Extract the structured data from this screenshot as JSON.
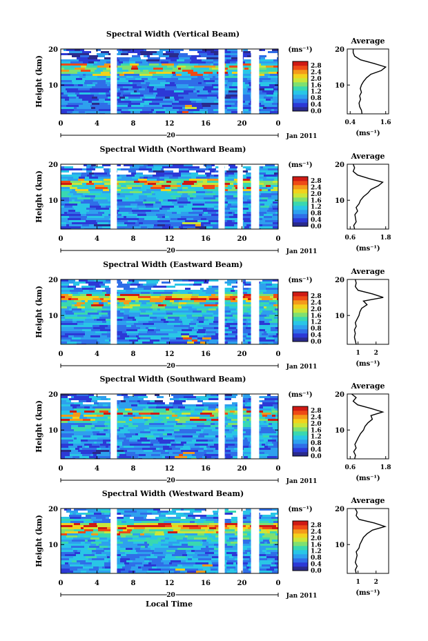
{
  "figure": {
    "x_axis_title": "Local Time",
    "date_label": "Jan 2011",
    "day_label": "20",
    "x_ticks": [
      "0",
      "4",
      "8",
      "12",
      "16",
      "20",
      "0"
    ],
    "y_axis_title": "Height (km)",
    "y_ticks": [
      "20",
      "10"
    ],
    "colorbar_unit": "(ms⁻¹)",
    "colorbar_ticks": [
      "2.8",
      "2.4",
      "2.0",
      "1.6",
      "1.2",
      "0.8",
      "0.4",
      "0.0"
    ],
    "profile_title": "Average",
    "profile_unit": "(ms⁻¹)"
  },
  "colors": {
    "colormap": [
      "#2a2a8c",
      "#2c39d6",
      "#2f6ee8",
      "#2ea0ee",
      "#29c6e6",
      "#39d8b0",
      "#7fe070",
      "#c9e63a",
      "#f2d21c",
      "#f49a1a",
      "#ee4a16",
      "#cf1a14"
    ],
    "gap": "#ffffff",
    "axis": "#000000"
  },
  "chart_data": [
    {
      "type": "heatmap",
      "title": "Spectral Width (Vertical Beam)",
      "xlabel": "Local Time",
      "ylabel": "Height (km)",
      "xlim": [
        0,
        24
      ],
      "ylim": [
        2,
        20
      ],
      "clim": [
        0.0,
        3.0
      ],
      "data_gaps_hours": [
        [
          5.5,
          6.2
        ],
        [
          17.4,
          18.1
        ],
        [
          19.5,
          20.1
        ],
        [
          21.0,
          21.9
        ]
      ],
      "profile": {
        "title": "Average",
        "xlabel": "(ms⁻¹)",
        "xticks": [
          "0.4",
          "1.6"
        ],
        "xlim": [
          0.3,
          1.7
        ],
        "height_km": [
          2,
          3,
          4,
          5,
          6,
          7,
          8,
          9,
          10,
          11,
          12,
          13,
          14,
          15,
          16,
          17,
          18,
          19,
          20
        ],
        "width_ms": [
          0.8,
          0.78,
          0.72,
          0.7,
          0.75,
          0.72,
          0.78,
          0.74,
          0.78,
          0.85,
          0.95,
          1.1,
          1.45,
          1.6,
          1.2,
          0.75,
          0.55,
          0.5,
          0.5
        ]
      }
    },
    {
      "type": "heatmap",
      "title": "Spectral Width (Northward Beam)",
      "xlabel": "Local Time",
      "ylabel": "Height (km)",
      "xlim": [
        0,
        24
      ],
      "ylim": [
        2,
        20
      ],
      "clim": [
        0.0,
        3.0
      ],
      "data_gaps_hours": [
        [
          5.5,
          6.2
        ],
        [
          17.4,
          18.1
        ],
        [
          19.5,
          20.1
        ],
        [
          21.0,
          21.9
        ]
      ],
      "profile": {
        "title": "Average",
        "xlabel": "(ms⁻¹)",
        "xticks": [
          "0.6",
          "1.8"
        ],
        "xlim": [
          0.5,
          1.9
        ],
        "height_km": [
          2,
          3,
          4,
          5,
          6,
          7,
          8,
          9,
          10,
          11,
          12,
          13,
          14,
          15,
          16,
          17,
          18,
          19,
          20
        ],
        "width_ms": [
          0.75,
          0.72,
          0.8,
          0.78,
          0.76,
          0.85,
          0.8,
          0.9,
          0.95,
          1.05,
          1.2,
          1.3,
          1.55,
          1.7,
          1.25,
          0.85,
          0.7,
          0.75,
          0.7
        ]
      }
    },
    {
      "type": "heatmap",
      "title": "Spectral Width (Eastward Beam)",
      "xlabel": "Local Time",
      "ylabel": "Height (km)",
      "xlim": [
        0,
        24
      ],
      "ylim": [
        2,
        20
      ],
      "clim": [
        0.0,
        3.0
      ],
      "data_gaps_hours": [
        [
          5.5,
          6.2
        ],
        [
          17.4,
          18.1
        ],
        [
          19.5,
          20.1
        ],
        [
          21.0,
          21.9
        ]
      ],
      "profile": {
        "title": "Average",
        "xlabel": "(ms⁻¹)",
        "xticks": [
          "1",
          "2"
        ],
        "xlim": [
          0.4,
          2.7
        ],
        "height_km": [
          2,
          3,
          4,
          5,
          6,
          7,
          8,
          9,
          10,
          11,
          12,
          13,
          14,
          15,
          16,
          17,
          18,
          19,
          20
        ],
        "width_ms": [
          0.9,
          0.85,
          0.8,
          0.85,
          0.8,
          0.9,
          0.85,
          0.95,
          1.05,
          1.1,
          1.2,
          1.5,
          1.3,
          2.4,
          1.8,
          1.0,
          0.85,
          0.9,
          0.85
        ]
      }
    },
    {
      "type": "heatmap",
      "title": "Spectral Width (Southward Beam)",
      "xlabel": "Local Time",
      "ylabel": "Height (km)",
      "xlim": [
        0,
        24
      ],
      "ylim": [
        2,
        20
      ],
      "clim": [
        0.0,
        3.0
      ],
      "data_gaps_hours": [
        [
          5.5,
          6.2
        ],
        [
          17.4,
          18.1
        ],
        [
          19.5,
          20.1
        ],
        [
          21.0,
          21.9
        ]
      ],
      "profile": {
        "title": "Average",
        "xlabel": "(ms⁻¹)",
        "xticks": [
          "0.6",
          "1.8"
        ],
        "xlim": [
          0.5,
          1.9
        ],
        "height_km": [
          2,
          3,
          4,
          5,
          6,
          7,
          8,
          9,
          10,
          11,
          12,
          13,
          14,
          15,
          16,
          17,
          18,
          19,
          20
        ],
        "width_ms": [
          0.75,
          0.78,
          0.72,
          0.8,
          0.76,
          0.82,
          0.88,
          0.95,
          1.05,
          1.1,
          1.2,
          1.35,
          1.3,
          1.7,
          1.3,
          0.85,
          0.7,
          0.8,
          0.65
        ]
      }
    },
    {
      "type": "heatmap",
      "title": "Spectral Width (Westward Beam)",
      "xlabel": "Local Time",
      "ylabel": "Height (km)",
      "xlim": [
        0,
        24
      ],
      "ylim": [
        2,
        20
      ],
      "clim": [
        0.0,
        3.0
      ],
      "data_gaps_hours": [
        [
          5.5,
          6.2
        ],
        [
          17.4,
          18.1
        ],
        [
          19.5,
          20.1
        ],
        [
          21.0,
          21.9
        ]
      ],
      "profile": {
        "title": "Average",
        "xlabel": "(ms⁻¹)",
        "xticks": [
          "1",
          "2"
        ],
        "xlim": [
          0.4,
          2.7
        ],
        "height_km": [
          2,
          3,
          4,
          5,
          6,
          7,
          8,
          9,
          10,
          11,
          12,
          13,
          14,
          15,
          16,
          17,
          18,
          19,
          20
        ],
        "width_ms": [
          0.9,
          0.85,
          0.95,
          0.85,
          0.9,
          0.95,
          0.9,
          1.05,
          1.1,
          1.2,
          1.3,
          1.5,
          1.8,
          2.5,
          1.9,
          1.05,
          0.9,
          0.95,
          0.85
        ]
      }
    }
  ]
}
